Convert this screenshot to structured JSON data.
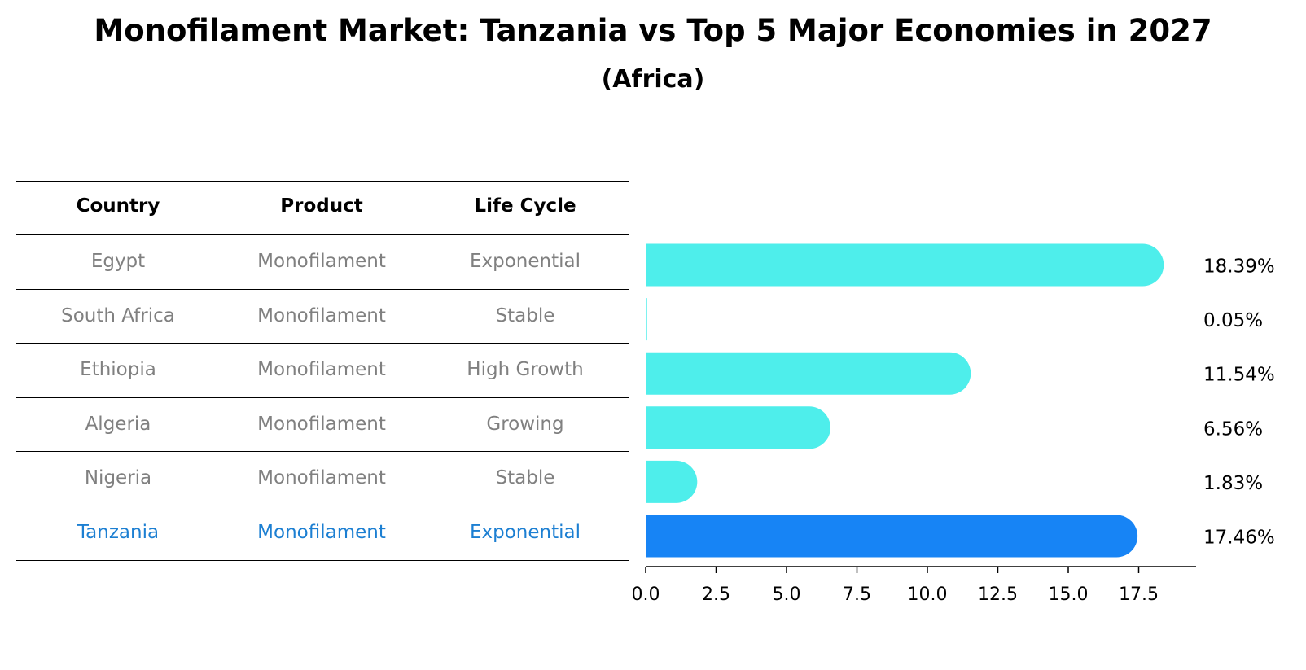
{
  "title": "Monofilament Market: Tanzania vs Top 5 Major Economies in 2027",
  "subtitle": "(Africa)",
  "table": {
    "headers": [
      "Country",
      "Product",
      "Life Cycle"
    ],
    "rows": [
      {
        "country": "Egypt",
        "product": "Monofilament",
        "life_cycle": "Exponential",
        "highlight": false
      },
      {
        "country": "South Africa",
        "product": "Monofilament",
        "life_cycle": "Stable",
        "highlight": false
      },
      {
        "country": "Ethiopia",
        "product": "Monofilament",
        "life_cycle": "High Growth",
        "highlight": false
      },
      {
        "country": "Algeria",
        "product": "Monofilament",
        "life_cycle": "Growing",
        "highlight": false
      },
      {
        "country": "Nigeria",
        "product": "Monofilament",
        "life_cycle": "Stable",
        "highlight": false
      },
      {
        "country": "Tanzania",
        "product": "Monofilament",
        "life_cycle": "Exponential",
        "highlight": true
      }
    ]
  },
  "colors": {
    "bar": "#4eeeeb",
    "highlight_bar": "#1784f5",
    "highlight_text": "#1c7fd2",
    "muted_text": "#808080"
  },
  "chart_data": {
    "type": "bar",
    "orientation": "horizontal",
    "categories": [
      "Egypt",
      "South Africa",
      "Ethiopia",
      "Algeria",
      "Nigeria",
      "Tanzania"
    ],
    "values": [
      18.39,
      0.05,
      11.54,
      6.56,
      1.83,
      17.46
    ],
    "value_labels": [
      "18.39%",
      "0.05%",
      "11.54%",
      "6.56%",
      "1.83%",
      "17.46%"
    ],
    "highlight_category": "Tanzania",
    "xlim": [
      0,
      19.3
    ],
    "xticks": [
      0.0,
      2.5,
      5.0,
      7.5,
      10.0,
      12.5,
      15.0,
      17.5
    ],
    "xtick_labels": [
      "0.0",
      "2.5",
      "5.0",
      "7.5",
      "10.0",
      "12.5",
      "15.0",
      "17.5"
    ],
    "xlabel": "",
    "ylabel": "",
    "grid": false
  }
}
